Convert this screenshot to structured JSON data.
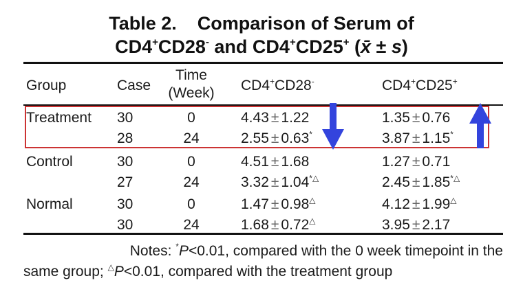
{
  "title": {
    "line1": "Table 2.    Comparison of Serum of",
    "line2": {
      "a": "CD4",
      "a_sup": "+",
      "b": "CD28",
      "b_sup": "-",
      "c": " and ",
      "d": "CD4",
      "d_sup": "+",
      "e": "CD25",
      "e_sup": "+",
      "f": " (",
      "g": "x̄",
      "h": " ± ",
      "i": "s",
      "j": ")"
    }
  },
  "headers": {
    "group": "Group",
    "case": "Case",
    "time_line1": "Time",
    "time_line2": "(Week)",
    "cd28": {
      "base": "CD4",
      "sup1": "+",
      "mid": "CD28",
      "sup2": "-"
    },
    "cd25": {
      "base": "CD4",
      "sup1": "+",
      "mid": "CD25",
      "sup2": "+"
    }
  },
  "pm": "±",
  "rows": [
    {
      "group": "Treatment",
      "case": "30",
      "time": "0",
      "cd28_mean": "4.43",
      "cd28_sd": "1.22",
      "cd28_mark": "",
      "cd25_mean": "1.35",
      "cd25_sd": "0.76",
      "cd25_mark": ""
    },
    {
      "group": "",
      "case": "28",
      "time": "24",
      "cd28_mean": "2.55",
      "cd28_sd": "0.63",
      "cd28_mark": "*",
      "cd25_mean": "3.87",
      "cd25_sd": "1.15",
      "cd25_mark": "*"
    },
    {
      "group": "Control",
      "case": "30",
      "time": "0",
      "cd28_mean": "4.51",
      "cd28_sd": "1.68",
      "cd28_mark": "",
      "cd25_mean": "1.27",
      "cd25_sd": "0.71",
      "cd25_mark": ""
    },
    {
      "group": "",
      "case": "27",
      "time": "24",
      "cd28_mean": "3.32",
      "cd28_sd": "1.04",
      "cd28_mark": "*△",
      "cd25_mean": "2.45",
      "cd25_sd": "1.85",
      "cd25_mark": "*△"
    },
    {
      "group": "Normal",
      "case": "30",
      "time": "0",
      "cd28_mean": "1.47",
      "cd28_sd": "0.98",
      "cd28_mark": "△",
      "cd25_mean": "4.12",
      "cd25_sd": "1.99",
      "cd25_mark": "△"
    },
    {
      "group": "",
      "case": "30",
      "time": "24",
      "cd28_mean": "1.68",
      "cd28_sd": "0.72",
      "cd28_mark": "△",
      "cd25_mean": "3.95",
      "cd25_sd": "2.17",
      "cd25_mark": ""
    }
  ],
  "notes": {
    "lead": "Notes: ",
    "star": "*",
    "p1": "P",
    "text1": "<0.01, compared with the 0 week timepoint in the",
    "text2": "same group; ",
    "tri": "△",
    "p2": "P",
    "text3": "<0.01, compared with the treatment group"
  },
  "colors": {
    "highlight_border": "#cc3333",
    "arrow": "#3344dd"
  },
  "annotations": {
    "arrow_cd28": "down-arrow-icon",
    "arrow_cd25": "up-arrow-icon"
  }
}
